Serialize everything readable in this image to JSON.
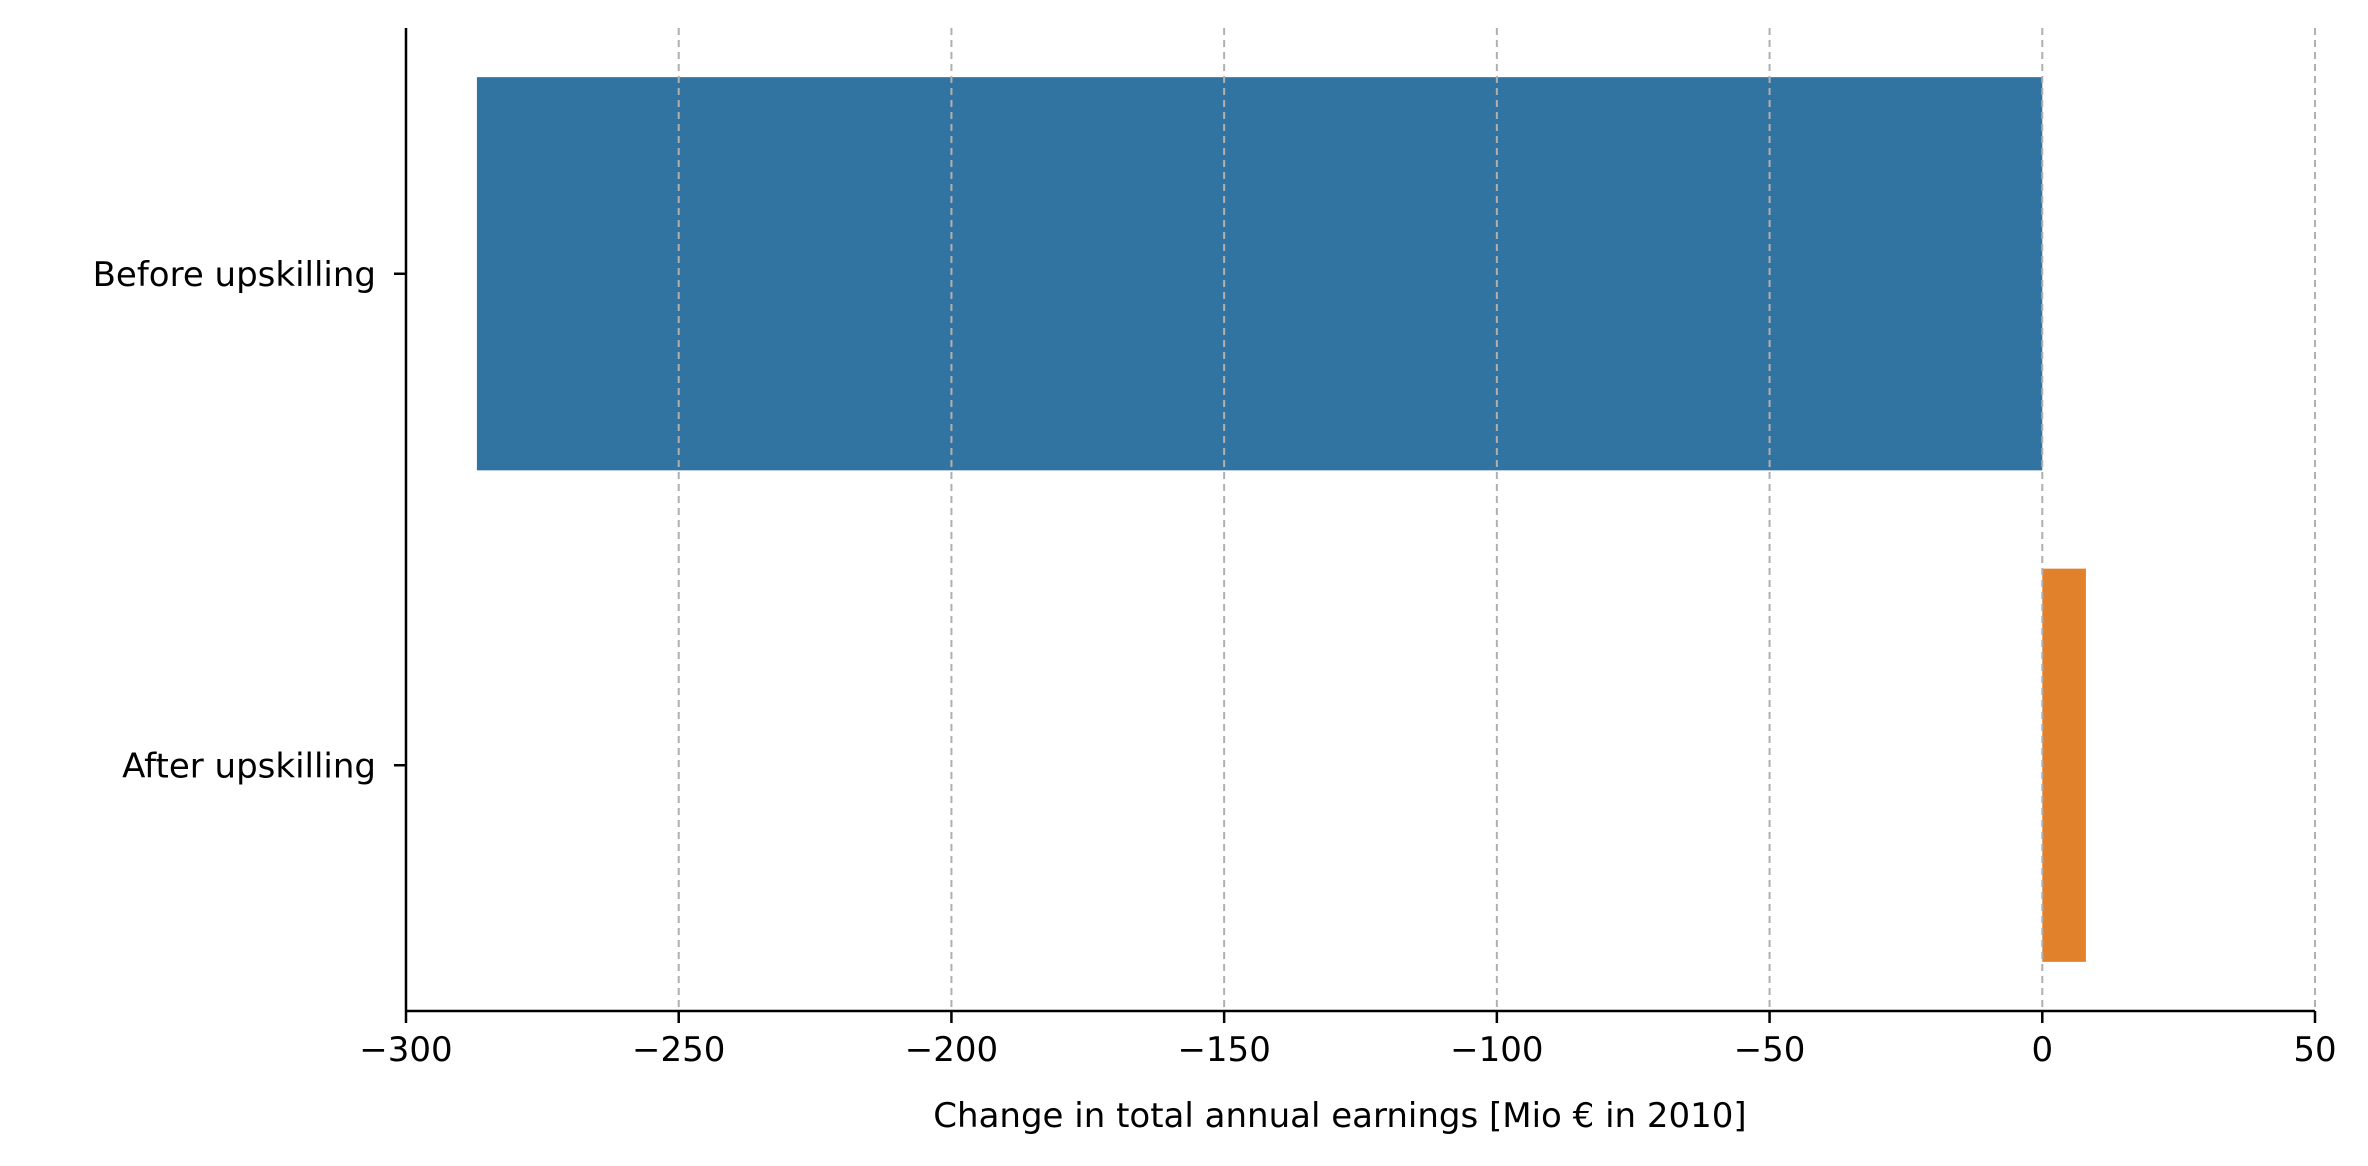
{
  "chart_data": {
    "type": "bar",
    "orientation": "horizontal",
    "categories": [
      "Before upskilling",
      "After upskilling"
    ],
    "values": [
      -287,
      8
    ],
    "colors": [
      "#3274a1",
      "#e1812c"
    ],
    "xlabel": "Change in total annual earnings [Mio € in 2010]",
    "ylabel": "",
    "xlim": [
      -300,
      50
    ],
    "xticks": [
      -300,
      -250,
      -200,
      -150,
      -100,
      -50,
      0,
      50
    ],
    "xtick_labels": [
      "−300",
      "−250",
      "−200",
      "−150",
      "−100",
      "−50",
      "0",
      "50"
    ],
    "grid": {
      "x": true,
      "y": false,
      "style": "dashed",
      "color": "#b0b0b0"
    },
    "spines": {
      "left": true,
      "bottom": true,
      "top": false,
      "right": false
    }
  }
}
